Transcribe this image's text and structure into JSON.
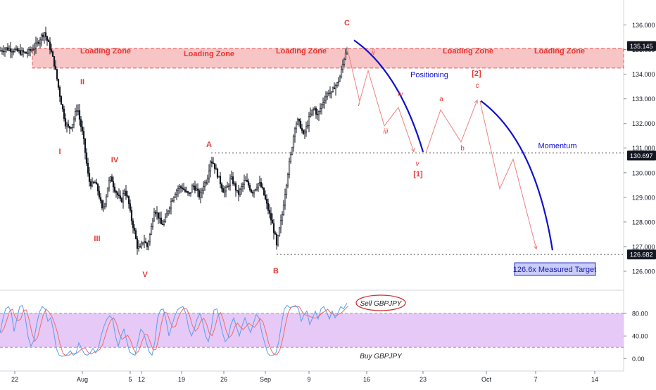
{
  "chart_data": [
    {
      "type": "line",
      "subtype": "candlestick-price",
      "y_axis": {
        "ticks": [
          "136.000",
          "135.000",
          "134.000",
          "133.000",
          "132.000",
          "131.000",
          "130.000",
          "129.000",
          "128.000",
          "127.000",
          "126.000"
        ],
        "ylim": [
          125.6,
          136.3
        ],
        "price_tags": [
          {
            "label": "135.145",
            "value": 135.145
          },
          {
            "label": "130.697",
            "value": 130.697
          },
          {
            "label": "126.682",
            "value": 126.682
          }
        ]
      },
      "x_axis": {
        "ticks": [
          "22",
          "Aug",
          "5",
          "12",
          "19",
          "26",
          "Sep",
          "9",
          "16",
          "23",
          "Oct",
          "7",
          "14"
        ]
      },
      "price_path": [
        [
          0,
          134.95
        ],
        [
          8,
          135.05
        ],
        [
          18,
          135.0
        ],
        [
          28,
          134.9
        ],
        [
          38,
          134.85
        ],
        [
          45,
          135.0
        ],
        [
          52,
          135.2
        ],
        [
          58,
          135.5
        ],
        [
          63,
          135.7
        ],
        [
          68,
          135.3
        ],
        [
          72,
          135.0
        ],
        [
          78,
          134.3
        ],
        [
          84,
          133.3
        ],
        [
          88,
          132.7
        ],
        [
          93,
          132.0
        ],
        [
          98,
          131.8
        ],
        [
          103,
          132.0
        ],
        [
          107,
          132.4
        ],
        [
          110,
          132.7
        ],
        [
          114,
          132.0
        ],
        [
          118,
          131.5
        ],
        [
          122,
          130.6
        ],
        [
          126,
          129.7
        ],
        [
          130,
          129.5
        ],
        [
          135,
          129.6
        ],
        [
          140,
          129.2
        ],
        [
          145,
          128.5
        ],
        [
          150,
          128.9
        ],
        [
          154,
          129.6
        ],
        [
          158,
          129.8
        ],
        [
          162,
          129.4
        ],
        [
          167,
          129.1
        ],
        [
          172,
          128.8
        ],
        [
          177,
          129.3
        ],
        [
          182,
          128.9
        ],
        [
          186,
          128.2
        ],
        [
          191,
          127.6
        ],
        [
          195,
          127.0
        ],
        [
          199,
          126.9
        ],
        [
          204,
          127.3
        ],
        [
          209,
          127.0
        ],
        [
          214,
          127.6
        ],
        [
          219,
          128.5
        ],
        [
          224,
          128.3
        ],
        [
          229,
          127.9
        ],
        [
          234,
          128.0
        ],
        [
          239,
          128.5
        ],
        [
          244,
          128.9
        ],
        [
          249,
          129.2
        ],
        [
          254,
          129.4
        ],
        [
          259,
          129.4
        ],
        [
          264,
          129.2
        ],
        [
          269,
          129.1
        ],
        [
          274,
          129.5
        ],
        [
          279,
          129.3
        ],
        [
          284,
          129.0
        ],
        [
          289,
          129.5
        ],
        [
          294,
          129.7
        ],
        [
          299,
          130.5
        ],
        [
          303,
          130.4
        ],
        [
          308,
          130.0
        ],
        [
          313,
          129.6
        ],
        [
          318,
          129.2
        ],
        [
          323,
          129.4
        ],
        [
          328,
          129.8
        ],
        [
          333,
          129.5
        ],
        [
          338,
          129.1
        ],
        [
          343,
          129.4
        ],
        [
          348,
          129.7
        ],
        [
          353,
          129.5
        ],
        [
          358,
          129.2
        ],
        [
          363,
          129.4
        ],
        [
          368,
          129.6
        ],
        [
          373,
          129.3
        ],
        [
          378,
          128.8
        ],
        [
          383,
          128.3
        ],
        [
          387,
          127.9
        ],
        [
          391,
          127.4
        ],
        [
          393,
          127.0
        ],
        [
          397,
          127.7
        ],
        [
          401,
          128.3
        ],
        [
          404,
          129.0
        ],
        [
          407,
          129.6
        ],
        [
          410,
          130.2
        ],
        [
          413,
          130.7
        ],
        [
          416,
          131.3
        ],
        [
          419,
          131.9
        ],
        [
          423,
          132.1
        ],
        [
          427,
          131.9
        ],
        [
          431,
          131.5
        ],
        [
          435,
          131.8
        ],
        [
          439,
          132.2
        ],
        [
          443,
          132.5
        ],
        [
          447,
          132.6
        ],
        [
          451,
          132.3
        ],
        [
          455,
          132.6
        ],
        [
          459,
          132.9
        ],
        [
          463,
          133.1
        ],
        [
          467,
          133.3
        ],
        [
          471,
          133.2
        ],
        [
          475,
          133.5
        ],
        [
          479,
          133.6
        ],
        [
          483,
          133.9
        ],
        [
          487,
          134.4
        ],
        [
          490,
          134.8
        ],
        [
          493,
          135.15
        ]
      ],
      "overbought_zone": {
        "low": 134.25,
        "high": 135.05
      },
      "horizontal_levels": [
        130.8,
        126.68
      ],
      "labels": {
        "loading_zone": "Loading Zone",
        "wave_I": "I",
        "wave_II": "II",
        "wave_III": "III",
        "wave_IV": "IV",
        "wave_V": "V",
        "wave_A": "A",
        "wave_B": "B",
        "wave_C": "C",
        "sub_i": "i",
        "sub_ii": "ii",
        "sub_iii": "iii",
        "sub_iv": "iv",
        "sub_v": "v",
        "sub_1": "[1]",
        "sub_2": "[2]",
        "sub_a": "a",
        "sub_b": "b",
        "sub_c": "c",
        "positioning": "Positioning",
        "momentum": "Momentum",
        "target": "126.6x Measured Target"
      },
      "projection_minor": [
        [
          493,
          135.1
        ],
        [
          511,
          132.9
        ],
        [
          523,
          134.15
        ],
        [
          546,
          131.9
        ],
        [
          566,
          132.65
        ],
        [
          588,
          130.85
        ]
      ],
      "projection_corrective": [
        [
          605,
          130.8
        ],
        [
          626,
          132.55
        ],
        [
          655,
          131.25
        ],
        [
          678,
          132.95
        ]
      ],
      "projection_down": [
        [
          682,
          132.9
        ],
        [
          710,
          129.35
        ],
        [
          729,
          130.55
        ],
        [
          762,
          126.9
        ]
      ],
      "arc_positioning": [
        [
          503,
          135.38
        ],
        [
          567,
          134.1
        ],
        [
          601,
          130.85
        ]
      ],
      "arc_momentum": [
        [
          683,
          132.92
        ],
        [
          760,
          131.3
        ],
        [
          785,
          126.85
        ]
      ],
      "colors": {
        "candle": "#131722",
        "zone_fill": "#f7c5c5",
        "zone_border": "#e05a5a",
        "wave_label": "#e53935",
        "projection": "#f08080",
        "arc": "#1010d0",
        "target_box_fill": "#c9cdf7",
        "target_box_border": "#2b33c9",
        "tag_bg": "#131722",
        "tag_text": "#ffffff"
      }
    },
    {
      "type": "line",
      "subtype": "stochastic-oscillator",
      "y_axis": {
        "ticks": [
          "80.00",
          "40.00",
          "0.00"
        ],
        "ylim": [
          -12,
          106
        ]
      },
      "band": {
        "low": 20,
        "high": 80
      },
      "labels": {
        "sell": "Sell GBPJPY",
        "buy": "Buy GBPJPY"
      },
      "stoch_path": [
        [
          0,
          45
        ],
        [
          4,
          70
        ],
        [
          8,
          88
        ],
        [
          12,
          92
        ],
        [
          16,
          82
        ],
        [
          20,
          48
        ],
        [
          24,
          70
        ],
        [
          28,
          92
        ],
        [
          32,
          94
        ],
        [
          36,
          72
        ],
        [
          40,
          38
        ],
        [
          44,
          22
        ],
        [
          48,
          32
        ],
        [
          52,
          60
        ],
        [
          56,
          82
        ],
        [
          60,
          92
        ],
        [
          64,
          88
        ],
        [
          68,
          66
        ],
        [
          72,
          72
        ],
        [
          76,
          50
        ],
        [
          80,
          18
        ],
        [
          84,
          6
        ],
        [
          88,
          4
        ],
        [
          92,
          5
        ],
        [
          96,
          8
        ],
        [
          100,
          14
        ],
        [
          104,
          6
        ],
        [
          108,
          9
        ],
        [
          112,
          28
        ],
        [
          116,
          18
        ],
        [
          120,
          8
        ],
        [
          124,
          6
        ],
        [
          128,
          10
        ],
        [
          132,
          18
        ],
        [
          136,
          10
        ],
        [
          140,
          20
        ],
        [
          144,
          42
        ],
        [
          148,
          58
        ],
        [
          152,
          70
        ],
        [
          156,
          76
        ],
        [
          160,
          70
        ],
        [
          164,
          40
        ],
        [
          168,
          22
        ],
        [
          172,
          40
        ],
        [
          176,
          52
        ],
        [
          180,
          32
        ],
        [
          184,
          12
        ],
        [
          188,
          8
        ],
        [
          192,
          6
        ],
        [
          196,
          30
        ],
        [
          200,
          52
        ],
        [
          204,
          46
        ],
        [
          208,
          28
        ],
        [
          212,
          12
        ],
        [
          216,
          6
        ],
        [
          220,
          30
        ],
        [
          224,
          72
        ],
        [
          228,
          86
        ],
        [
          232,
          88
        ],
        [
          236,
          68
        ],
        [
          240,
          40
        ],
        [
          244,
          58
        ],
        [
          248,
          74
        ],
        [
          252,
          86
        ],
        [
          256,
          90
        ],
        [
          260,
          92
        ],
        [
          264,
          80
        ],
        [
          268,
          54
        ],
        [
          272,
          40
        ],
        [
          276,
          52
        ],
        [
          280,
          70
        ],
        [
          284,
          80
        ],
        [
          288,
          64
        ],
        [
          292,
          40
        ],
        [
          296,
          30
        ],
        [
          300,
          52
        ],
        [
          304,
          86
        ],
        [
          308,
          88
        ],
        [
          312,
          70
        ],
        [
          316,
          46
        ],
        [
          320,
          30
        ],
        [
          324,
          36
        ],
        [
          328,
          60
        ],
        [
          332,
          72
        ],
        [
          336,
          56
        ],
        [
          340,
          40
        ],
        [
          344,
          58
        ],
        [
          348,
          72
        ],
        [
          352,
          58
        ],
        [
          356,
          46
        ],
        [
          360,
          62
        ],
        [
          364,
          78
        ],
        [
          368,
          72
        ],
        [
          372,
          46
        ],
        [
          376,
          28
        ],
        [
          380,
          10
        ],
        [
          384,
          5
        ],
        [
          388,
          6
        ],
        [
          392,
          10
        ],
        [
          396,
          30
        ],
        [
          400,
          62
        ],
        [
          404,
          88
        ],
        [
          408,
          94
        ],
        [
          412,
          90
        ],
        [
          416,
          92
        ],
        [
          420,
          94
        ],
        [
          424,
          88
        ],
        [
          428,
          66
        ],
        [
          432,
          78
        ],
        [
          436,
          84
        ],
        [
          440,
          60
        ],
        [
          444,
          72
        ],
        [
          448,
          84
        ],
        [
          452,
          70
        ],
        [
          456,
          88
        ],
        [
          460,
          92
        ],
        [
          464,
          82
        ],
        [
          468,
          70
        ],
        [
          472,
          84
        ],
        [
          476,
          72
        ],
        [
          480,
          80
        ],
        [
          484,
          92
        ],
        [
          488,
          88
        ],
        [
          493,
          98
        ]
      ],
      "colors": {
        "band_fill": "#e6c9f7",
        "k_line": "#5c9ded",
        "d_line": "#ef6b6b"
      }
    }
  ]
}
